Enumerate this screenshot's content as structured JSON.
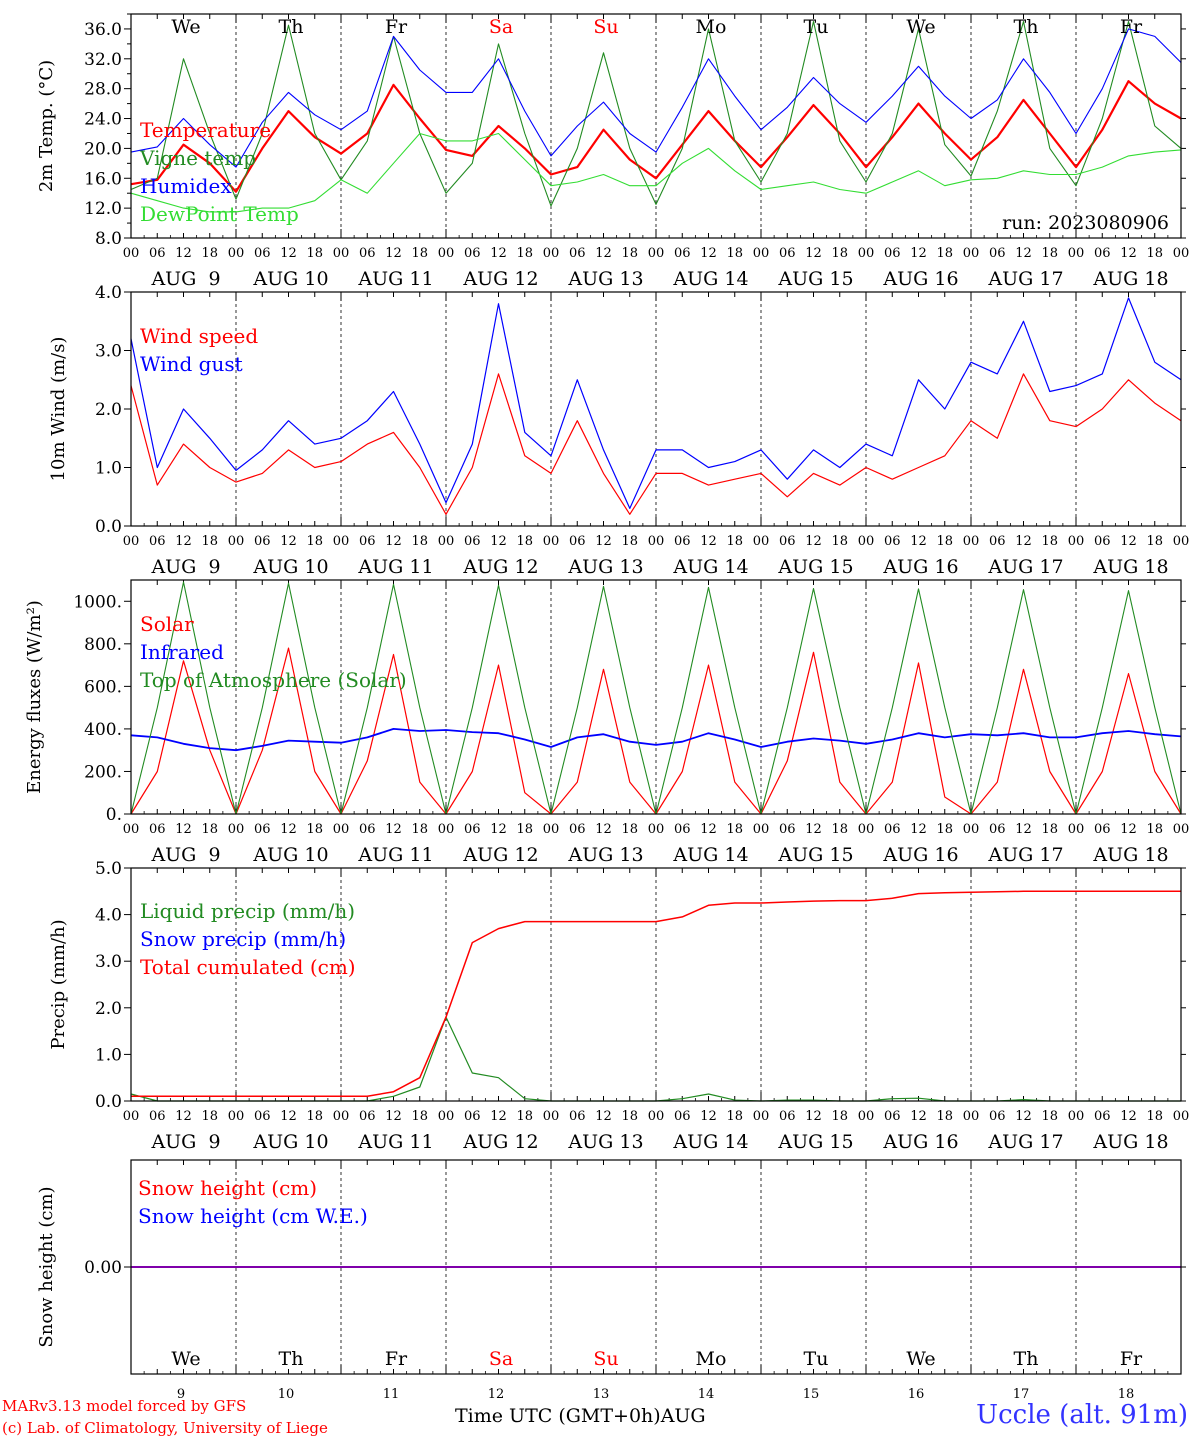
{
  "run_label": "run: 2023080906",
  "days": {
    "weekdays": [
      "We",
      "Th",
      "Fr",
      "Sa",
      "Su",
      "Mo",
      "Tu",
      "We",
      "Th",
      "Fr"
    ],
    "weekend_flags": [
      false,
      false,
      false,
      true,
      true,
      false,
      false,
      false,
      false,
      false
    ],
    "day_numbers": [
      "9",
      "10",
      "11",
      "12",
      "13",
      "14",
      "15",
      "16",
      "17",
      "18"
    ],
    "date_labels": [
      "AUG  9",
      "AUG 10",
      "AUG 11",
      "AUG 12",
      "AUG 13",
      "AUG 14",
      "AUG 15",
      "AUG 16",
      "AUG 17",
      "AUG 18"
    ],
    "hour_ticks": [
      "00",
      "06",
      "12",
      "18"
    ],
    "final_hour_tick": "00"
  },
  "colors": {
    "red": "#ff0000",
    "green": "#228b22",
    "blue": "#0000ff",
    "lightgreen": "#33dd33",
    "purple": "#7f00aa",
    "axis": "#000000",
    "station": "#3333ff"
  },
  "footer": {
    "credit_line1": "MARv3.13 model forced by GFS",
    "credit_line2": "(c) Lab. of Climatology, University of Liege",
    "xaxis_title": "Time UTC (GMT+0h)",
    "month": "AUG",
    "station": "Uccle (alt. 91m)"
  },
  "chart_data": [
    {
      "type": "line",
      "id": "temp",
      "ylabel": "2m Temp. (°C)",
      "ylim": [
        8,
        38
      ],
      "yticks": [
        "8.0",
        "12.0",
        "16.0",
        "20.0",
        "24.0",
        "28.0",
        "32.0",
        "36.0"
      ],
      "ytick_values": [
        8,
        12,
        16,
        20,
        24,
        28,
        32,
        36
      ],
      "x_unit": "days since AUG 9 00 UTC",
      "x": [
        0,
        0.25,
        0.5,
        0.75,
        1,
        1.25,
        1.5,
        1.75,
        2,
        2.25,
        2.5,
        2.75,
        3,
        3.25,
        3.5,
        3.75,
        4,
        4.25,
        4.5,
        4.75,
        5,
        5.25,
        5.5,
        5.75,
        6,
        6.25,
        6.5,
        6.75,
        7,
        7.25,
        7.5,
        7.75,
        8,
        8.25,
        8.5,
        8.75,
        9,
        9.25,
        9.5,
        9.75,
        10
      ],
      "series": [
        {
          "name": "Temperature",
          "color": "#ff0000",
          "width": 2.2,
          "values": [
            15.2,
            15.8,
            20.5,
            18,
            14.2,
            20,
            25,
            21.5,
            19.3,
            22,
            28.5,
            24,
            19.8,
            19,
            23,
            20,
            16.5,
            17.5,
            22.5,
            18.5,
            16,
            20.5,
            25,
            21,
            17.5,
            21.5,
            25.8,
            22,
            17.5,
            21.5,
            26,
            22,
            18.5,
            21.5,
            26.5,
            22,
            17.5,
            22.5,
            29,
            26,
            24
          ]
        },
        {
          "name": "Vigne temp",
          "color": "#228b22",
          "width": 1.1,
          "values": [
            14.5,
            16,
            32,
            22,
            13.2,
            22,
            36.5,
            22,
            15.8,
            21,
            35,
            22,
            14,
            18,
            34,
            22,
            12.3,
            20,
            32.8,
            20,
            12.5,
            20,
            36,
            21,
            15.5,
            22,
            37,
            21,
            15.5,
            22,
            36,
            20.5,
            16.3,
            25,
            37,
            20,
            15,
            24,
            37,
            23,
            20
          ]
        },
        {
          "name": "Humidex",
          "color": "#0000ff",
          "width": 1.1,
          "values": [
            19.5,
            20.2,
            24,
            20.5,
            17.5,
            23.5,
            27.5,
            24.5,
            22.5,
            25,
            35,
            30.5,
            27.5,
            27.5,
            32,
            25,
            19,
            23,
            26.2,
            22,
            19.5,
            25.5,
            32,
            27,
            22.5,
            25.5,
            29.5,
            26,
            23.5,
            27,
            31,
            27,
            24,
            26.5,
            32,
            27.5,
            22,
            28,
            36,
            35,
            31.5
          ]
        },
        {
          "name": "DewPoint Temp",
          "color": "#33dd33",
          "width": 1.1,
          "values": [
            14,
            13,
            12,
            11.5,
            11.5,
            12,
            12,
            13,
            15.8,
            14,
            18,
            22,
            21,
            21,
            22,
            18.5,
            15,
            15.5,
            16.5,
            15,
            15,
            18,
            20,
            17,
            14.5,
            15,
            15.5,
            14.5,
            14,
            15.5,
            17,
            15,
            15.8,
            16,
            17,
            16.5,
            16.5,
            17.5,
            19,
            19.5,
            19.8
          ]
        }
      ]
    },
    {
      "type": "line",
      "id": "wind",
      "ylabel": "10m Wind (m/s)",
      "ylim": [
        0,
        4
      ],
      "yticks": [
        "0.0",
        "1.0",
        "2.0",
        "3.0",
        "4.0"
      ],
      "ytick_values": [
        0,
        1,
        2,
        3,
        4
      ],
      "x_unit": "days since AUG 9 00 UTC",
      "x": [
        0,
        0.25,
        0.5,
        0.75,
        1,
        1.25,
        1.5,
        1.75,
        2,
        2.25,
        2.5,
        2.75,
        3,
        3.25,
        3.5,
        3.75,
        4,
        4.25,
        4.5,
        4.75,
        5,
        5.25,
        5.5,
        5.75,
        6,
        6.25,
        6.5,
        6.75,
        7,
        7.25,
        7.5,
        7.75,
        8,
        8.25,
        8.5,
        8.75,
        9,
        9.25,
        9.5,
        9.75,
        10
      ],
      "series": [
        {
          "name": "Wind speed",
          "color": "#ff0000",
          "width": 1.2,
          "values": [
            2.4,
            0.7,
            1.4,
            1.0,
            0.75,
            0.9,
            1.3,
            1.0,
            1.1,
            1.4,
            1.6,
            1.0,
            0.2,
            1.0,
            2.6,
            1.2,
            0.9,
            1.8,
            0.9,
            0.2,
            0.9,
            0.9,
            0.7,
            0.8,
            0.9,
            0.5,
            0.9,
            0.7,
            1.0,
            0.8,
            1.0,
            1.2,
            1.8,
            1.5,
            2.6,
            1.8,
            1.7,
            2.0,
            2.5,
            2.1,
            1.8
          ]
        },
        {
          "name": "Wind gust",
          "color": "#0000ff",
          "width": 1.2,
          "values": [
            3.2,
            1.0,
            2.0,
            1.5,
            0.95,
            1.3,
            1.8,
            1.4,
            1.5,
            1.8,
            2.3,
            1.4,
            0.4,
            1.4,
            3.8,
            1.6,
            1.2,
            2.5,
            1.3,
            0.3,
            1.3,
            1.3,
            1.0,
            1.1,
            1.3,
            0.8,
            1.3,
            1.0,
            1.4,
            1.2,
            2.5,
            2.0,
            2.8,
            2.6,
            3.5,
            2.3,
            2.4,
            2.6,
            3.9,
            2.8,
            2.5
          ]
        }
      ]
    },
    {
      "type": "line",
      "id": "energy",
      "ylabel": "Energy fluxes (W/m²)",
      "ylim": [
        0,
        1100
      ],
      "yticks": [
        "0.",
        "200.",
        "400.",
        "600.",
        "800.",
        "1000."
      ],
      "ytick_values": [
        0,
        200,
        400,
        600,
        800,
        1000
      ],
      "x_unit": "days since AUG 9 00 UTC",
      "x": [
        0,
        0.25,
        0.5,
        0.75,
        1,
        1.25,
        1.5,
        1.75,
        2,
        2.25,
        2.5,
        2.75,
        3,
        3.25,
        3.5,
        3.75,
        4,
        4.25,
        4.5,
        4.75,
        5,
        5.25,
        5.5,
        5.75,
        6,
        6.25,
        6.5,
        6.75,
        7,
        7.25,
        7.5,
        7.75,
        8,
        8.25,
        8.5,
        8.75,
        9,
        9.25,
        9.5,
        9.75,
        10
      ],
      "series": [
        {
          "name": "Solar",
          "color": "#ff0000",
          "width": 1.2,
          "values": [
            0,
            200,
            720,
            300,
            0,
            300,
            780,
            200,
            0,
            250,
            750,
            150,
            0,
            200,
            700,
            100,
            0,
            150,
            680,
            150,
            0,
            200,
            700,
            150,
            0,
            250,
            760,
            150,
            0,
            150,
            710,
            80,
            0,
            150,
            680,
            200,
            0,
            200,
            660,
            200,
            0
          ]
        },
        {
          "name": "Infrared",
          "color": "#0000ff",
          "width": 1.8,
          "values": [
            370,
            360,
            330,
            310,
            300,
            320,
            345,
            340,
            335,
            360,
            400,
            390,
            395,
            385,
            380,
            350,
            315,
            360,
            375,
            340,
            325,
            340,
            380,
            350,
            315,
            340,
            355,
            345,
            330,
            350,
            380,
            360,
            375,
            370,
            380,
            360,
            360,
            380,
            390,
            375,
            365
          ]
        },
        {
          "name": "Top of Atmosphere (Solar)",
          "color": "#228b22",
          "width": 1.1,
          "values": [
            0,
            500,
            1090,
            500,
            0,
            500,
            1085,
            500,
            0,
            500,
            1080,
            500,
            0,
            500,
            1075,
            500,
            0,
            500,
            1070,
            500,
            0,
            500,
            1065,
            500,
            0,
            500,
            1060,
            500,
            0,
            500,
            1058,
            500,
            0,
            500,
            1055,
            500,
            0,
            500,
            1050,
            500,
            0
          ]
        }
      ]
    },
    {
      "type": "line",
      "id": "precip",
      "ylabel": "Precip (mm/h)",
      "ylim": [
        0,
        5
      ],
      "yticks": [
        "0.0",
        "1.0",
        "2.0",
        "3.0",
        "4.0",
        "5.0"
      ],
      "ytick_values": [
        0,
        1,
        2,
        3,
        4,
        5
      ],
      "x_unit": "days since AUG 9 00 UTC",
      "x": [
        0,
        0.25,
        0.5,
        0.75,
        1,
        1.25,
        1.5,
        1.75,
        2,
        2.25,
        2.5,
        2.75,
        3,
        3.25,
        3.5,
        3.75,
        4,
        4.25,
        4.5,
        4.75,
        5,
        5.25,
        5.5,
        5.75,
        6,
        6.25,
        6.5,
        6.75,
        7,
        7.25,
        7.5,
        7.75,
        8,
        8.25,
        8.5,
        8.75,
        9,
        9.25,
        9.5,
        9.75,
        10
      ],
      "series": [
        {
          "name": "Liquid precip (mm/h)",
          "color": "#228b22",
          "width": 1.2,
          "values": [
            0.15,
            0,
            0,
            0,
            0,
            0,
            0,
            0,
            0,
            0,
            0.1,
            0.3,
            1.8,
            0.6,
            0.5,
            0.05,
            0,
            0,
            0,
            0,
            0,
            0.05,
            0.15,
            0.02,
            0,
            0.02,
            0.02,
            0,
            0,
            0.05,
            0.06,
            0,
            0,
            0,
            0.03,
            0,
            0,
            0,
            0,
            0,
            0
          ]
        },
        {
          "name": "Snow precip (mm/h)",
          "color": "#0000ff",
          "width": 1.0,
          "values": [
            0,
            0,
            0,
            0,
            0,
            0,
            0,
            0,
            0,
            0,
            0,
            0,
            0,
            0,
            0,
            0,
            0,
            0,
            0,
            0,
            0,
            0,
            0,
            0,
            0,
            0,
            0,
            0,
            0,
            0,
            0,
            0,
            0,
            0,
            0,
            0,
            0,
            0,
            0,
            0,
            0
          ]
        },
        {
          "name": "Total cumulated (cm)",
          "color": "#ff0000",
          "width": 1.5,
          "values": [
            0.1,
            0.1,
            0.1,
            0.1,
            0.1,
            0.1,
            0.1,
            0.1,
            0.1,
            0.1,
            0.2,
            0.5,
            1.8,
            3.4,
            3.7,
            3.85,
            3.85,
            3.85,
            3.85,
            3.85,
            3.85,
            3.95,
            4.2,
            4.25,
            4.25,
            4.27,
            4.29,
            4.3,
            4.3,
            4.35,
            4.45,
            4.47,
            4.48,
            4.49,
            4.5,
            4.5,
            4.5,
            4.5,
            4.5,
            4.5,
            4.5
          ]
        }
      ]
    },
    {
      "type": "line",
      "id": "snow",
      "ylabel": "Snow height (cm)",
      "yticks": [
        "0.00"
      ],
      "ytick_values": [
        0
      ],
      "x_unit": "days since AUG 9 00 UTC",
      "x": [
        0,
        10
      ],
      "series": [
        {
          "name": "Snow height (cm)",
          "color": "#ff0000",
          "values": [
            0,
            0
          ]
        },
        {
          "name": "Snow height (cm W.E.)",
          "color": "#0000ff",
          "values": [
            0,
            0
          ]
        }
      ]
    }
  ]
}
